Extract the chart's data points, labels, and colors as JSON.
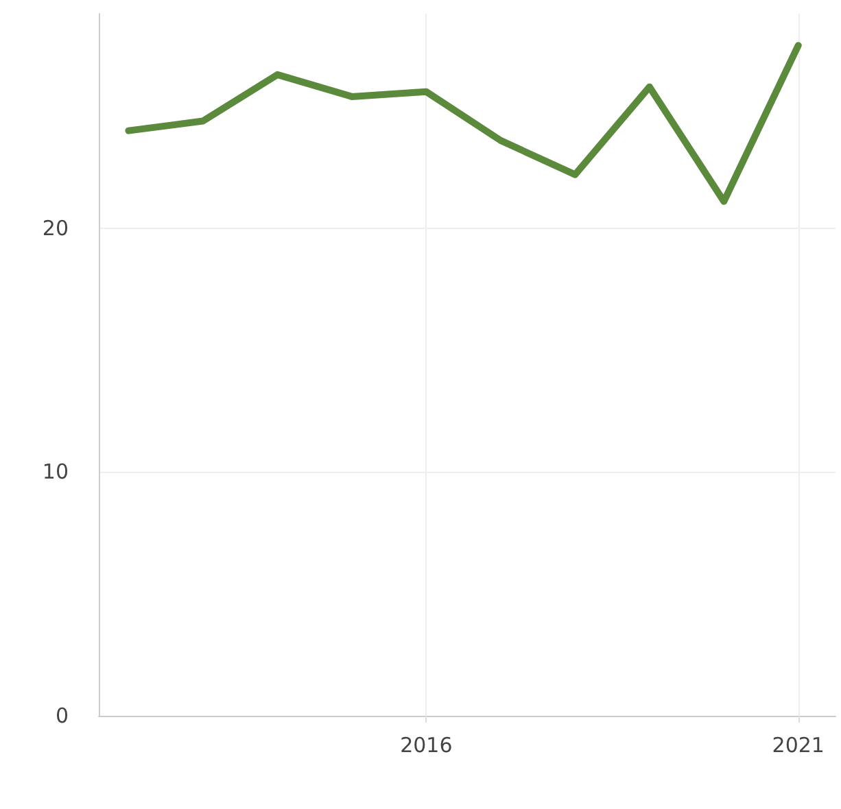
{
  "chart_data": {
    "type": "line",
    "x": [
      2012,
      2013,
      2014,
      2015,
      2016,
      2017,
      2018,
      2019,
      2020,
      2021
    ],
    "series": [
      {
        "color": "#5b8a3c",
        "values": [
          24.0,
          24.4,
          26.3,
          25.4,
          25.6,
          23.6,
          22.2,
          25.8,
          21.1,
          27.5
        ]
      }
    ],
    "xlim": [
      2011.6,
      2021.5
    ],
    "xticks": [
      2016,
      2021
    ],
    "ylim": [
      0,
      28.8
    ],
    "yticks": [
      0,
      10,
      20
    ],
    "grid": true,
    "marker": "none",
    "line_style": "solid"
  }
}
